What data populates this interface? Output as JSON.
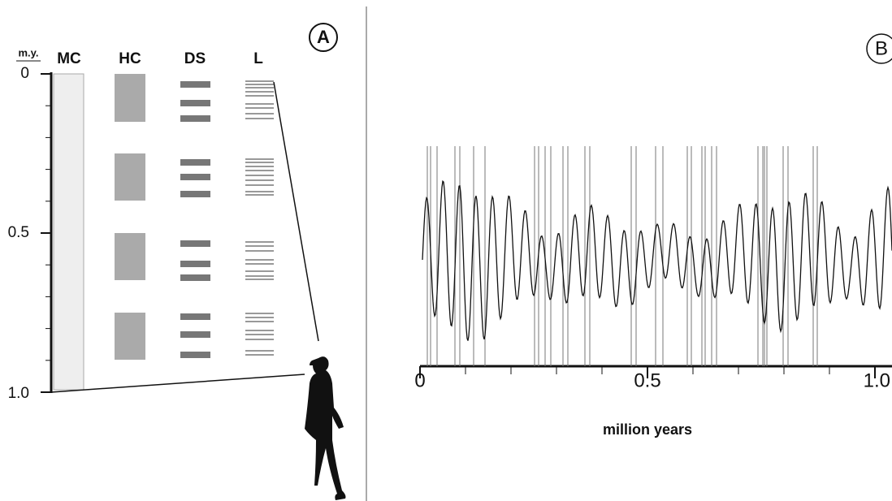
{
  "panel_a": {
    "label": "A",
    "unit_label": "m.y.",
    "columns": [
      "MC",
      "HC",
      "DS",
      "L"
    ],
    "ticks": [
      "0",
      "0.5",
      "1.0"
    ]
  },
  "panel_b": {
    "label": "B",
    "ticks": [
      "0",
      "0.5",
      "1.0"
    ],
    "axis_label": "million years"
  }
}
